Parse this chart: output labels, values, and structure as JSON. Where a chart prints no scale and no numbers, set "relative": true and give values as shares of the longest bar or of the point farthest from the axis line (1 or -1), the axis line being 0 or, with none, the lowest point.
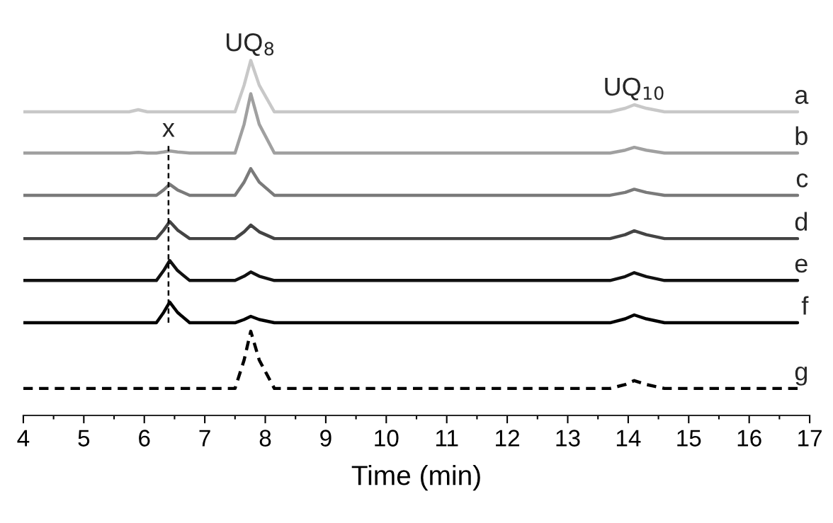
{
  "chart_data": {
    "type": "line",
    "relative": true,
    "xlabel": "Time (min)",
    "xlim": [
      4,
      17
    ],
    "xticks": [
      4,
      5,
      6,
      7,
      8,
      9,
      10,
      11,
      12,
      13,
      14,
      15,
      16,
      17
    ],
    "x": [
      4,
      5.75,
      5.9,
      6.05,
      6.2,
      6.32,
      6.42,
      6.55,
      6.75,
      7.5,
      7.65,
      7.76,
      7.9,
      8.15,
      13.7,
      13.95,
      14.1,
      14.3,
      14.6,
      16.8
    ],
    "series": [
      {
        "name": "a",
        "color": "#c8c8c8",
        "values": [
          0.855,
          0.855,
          0.861,
          0.855,
          0.855,
          0.855,
          0.855,
          0.855,
          0.855,
          0.855,
          0.93,
          1.0,
          0.93,
          0.855,
          0.855,
          0.865,
          0.875,
          0.865,
          0.855,
          0.855
        ]
      },
      {
        "name": "b",
        "color": "#a0a0a0",
        "values": [
          0.739,
          0.739,
          0.741,
          0.739,
          0.739,
          0.742,
          0.745,
          0.742,
          0.739,
          0.739,
          0.82,
          0.906,
          0.82,
          0.739,
          0.739,
          0.747,
          0.755,
          0.747,
          0.739,
          0.739
        ]
      },
      {
        "name": "c",
        "color": "#7a7a7a",
        "values": [
          0.62,
          0.62,
          0.62,
          0.62,
          0.62,
          0.635,
          0.651,
          0.635,
          0.62,
          0.62,
          0.657,
          0.695,
          0.657,
          0.62,
          0.62,
          0.628,
          0.637,
          0.628,
          0.62,
          0.62
        ]
      },
      {
        "name": "d",
        "color": "#444444",
        "values": [
          0.498,
          0.498,
          0.498,
          0.498,
          0.498,
          0.522,
          0.546,
          0.522,
          0.498,
          0.498,
          0.517,
          0.536,
          0.517,
          0.498,
          0.498,
          0.509,
          0.52,
          0.509,
          0.498,
          0.498
        ]
      },
      {
        "name": "e",
        "color": "#111111",
        "values": [
          0.38,
          0.38,
          0.38,
          0.38,
          0.38,
          0.408,
          0.436,
          0.408,
          0.38,
          0.38,
          0.392,
          0.404,
          0.392,
          0.38,
          0.38,
          0.391,
          0.402,
          0.391,
          0.38,
          0.38
        ]
      },
      {
        "name": "f",
        "color": "#000000",
        "values": [
          0.261,
          0.261,
          0.261,
          0.261,
          0.261,
          0.29,
          0.319,
          0.29,
          0.261,
          0.261,
          0.27,
          0.279,
          0.27,
          0.261,
          0.261,
          0.272,
          0.283,
          0.272,
          0.261,
          0.261
        ]
      },
      {
        "name": "g",
        "color": "#000000",
        "line_style": "dashed",
        "values": [
          0.076,
          0.076,
          0.076,
          0.076,
          0.076,
          0.076,
          0.076,
          0.076,
          0.076,
          0.076,
          0.156,
          0.237,
          0.156,
          0.076,
          0.076,
          0.087,
          0.098,
          0.087,
          0.076,
          0.076
        ]
      },
      {
        "color": "#000000",
        "line_style": "dashed",
        "x": [
          6.4,
          6.4
        ],
        "values": [
          0.759,
          0.261
        ]
      }
    ],
    "annotations": [
      {
        "text": "UQ$_{8}$",
        "x": 7.75,
        "y": 1.0
      },
      {
        "text": "UQ$_{10}$",
        "x": 14.1,
        "y": 0.875
      },
      {
        "text": "x",
        "x": 6.4,
        "y": 0.759
      }
    ]
  }
}
